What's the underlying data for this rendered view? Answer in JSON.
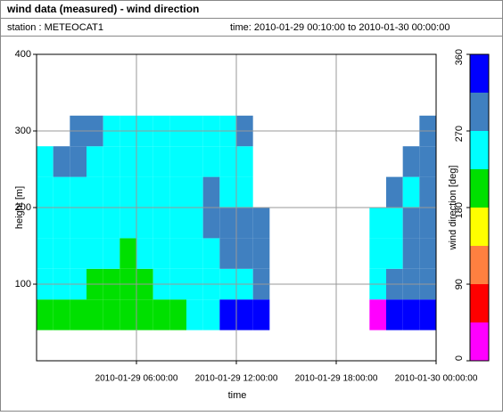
{
  "chart_data": {
    "type": "heatmap",
    "title": "wind data (measured) - wind direction",
    "station": "station : METEOCAT1",
    "period": "time: 2010-01-29 00:10:00 to 2010-01-30 00:00:00",
    "xlabel": "time",
    "ylabel": "height [m]",
    "x": [
      0,
      1,
      2,
      3,
      4,
      5,
      6,
      7,
      8,
      9,
      10,
      11,
      12,
      13,
      14,
      15,
      16,
      17,
      18,
      19,
      20,
      21,
      22,
      23
    ],
    "height_bins": [
      40,
      80,
      120,
      160,
      200,
      240,
      280,
      320,
      360
    ],
    "values": [
      [
        200,
        245,
        245,
        245,
        245,
        245,
        null,
        null
      ],
      [
        200,
        245,
        245,
        245,
        245,
        290,
        null,
        null
      ],
      [
        200,
        245,
        245,
        245,
        245,
        290,
        290,
        null
      ],
      [
        200,
        200,
        245,
        245,
        245,
        245,
        290,
        null
      ],
      [
        200,
        200,
        245,
        245,
        245,
        245,
        245,
        null
      ],
      [
        200,
        200,
        200,
        245,
        245,
        245,
        245,
        null
      ],
      [
        200,
        200,
        245,
        245,
        245,
        245,
        245,
        null
      ],
      [
        200,
        245,
        245,
        245,
        245,
        245,
        245,
        null
      ],
      [
        200,
        245,
        245,
        245,
        245,
        245,
        245,
        null
      ],
      [
        245,
        245,
        245,
        245,
        245,
        245,
        245,
        null
      ],
      [
        245,
        245,
        245,
        290,
        290,
        245,
        245,
        null
      ],
      [
        335,
        245,
        290,
        290,
        245,
        245,
        245,
        null
      ],
      [
        335,
        245,
        290,
        290,
        245,
        245,
        290,
        null
      ],
      [
        335,
        290,
        290,
        290,
        null,
        null,
        null,
        null
      ],
      [
        null,
        null,
        null,
        null,
        null,
        null,
        null,
        null
      ],
      [
        null,
        null,
        null,
        null,
        null,
        null,
        null,
        null
      ],
      [
        null,
        null,
        null,
        null,
        null,
        null,
        null,
        null
      ],
      [
        null,
        null,
        null,
        null,
        null,
        null,
        null,
        null
      ],
      [
        null,
        null,
        null,
        null,
        null,
        null,
        null,
        null
      ],
      [
        null,
        null,
        null,
        null,
        null,
        null,
        null,
        null
      ],
      [
        20,
        245,
        245,
        245,
        null,
        null,
        null,
        null
      ],
      [
        335,
        290,
        245,
        245,
        290,
        null,
        null,
        null
      ],
      [
        335,
        290,
        290,
        290,
        245,
        290,
        null,
        null
      ],
      [
        335,
        290,
        290,
        290,
        290,
        290,
        290,
        null
      ]
    ],
    "xlim": [
      0,
      24
    ],
    "xticks": [
      {
        "value": 6,
        "label": "2010-01-29 06:00:00"
      },
      {
        "value": 12,
        "label": "2010-01-29 12:00:00"
      },
      {
        "value": 18,
        "label": "2010-01-29 18:00:00"
      },
      {
        "value": 24,
        "label": "2010-01-30 00:00:00"
      }
    ],
    "ylim": [
      0,
      400
    ],
    "yticks": [
      100,
      200,
      300,
      400
    ],
    "grid": true,
    "colorbar": {
      "label": "wind direction [deg]",
      "lim": [
        0,
        360
      ],
      "ticks": [
        0,
        90,
        180,
        270,
        360
      ],
      "colors": [
        "#ff00ff",
        "#ff0000",
        "#ff8040",
        "#ffff00",
        "#00e000",
        "#00ffff",
        "#4080c0",
        "#0000ff"
      ]
    }
  }
}
